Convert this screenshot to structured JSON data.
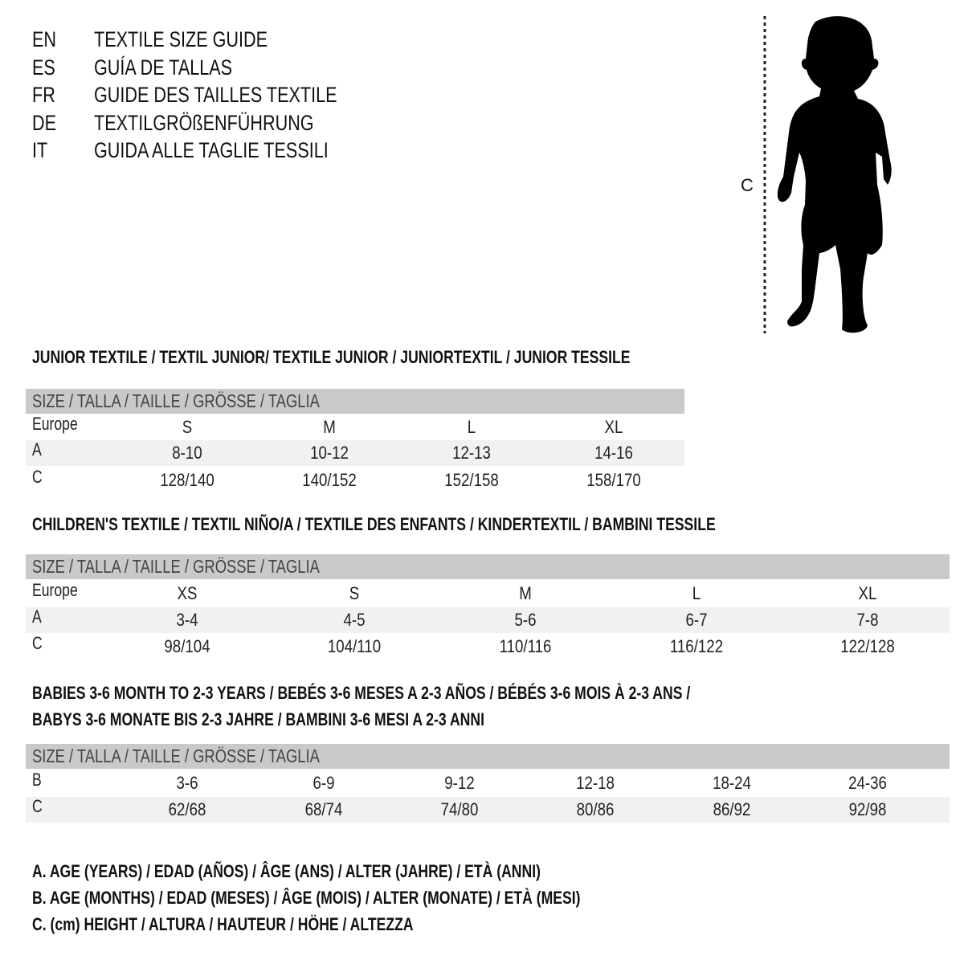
{
  "languages": [
    {
      "code": "EN",
      "title": "TEXTILE SIZE GUIDE"
    },
    {
      "code": "ES",
      "title": "GUÍA DE TALLAS"
    },
    {
      "code": "FR",
      "title": "GUIDE DES TAILLES TEXTILE"
    },
    {
      "code": "DE",
      "title": "TEXTILGRÖßENFÜHRUNG"
    },
    {
      "code": "IT",
      "title": "GUIDA ALLE TAGLIE TESSILI"
    }
  ],
  "figure": {
    "measure_label": "C",
    "icon": "child-silhouette-icon"
  },
  "colors": {
    "header_bg": "#c9c9c9",
    "row_shade": "#f1f1f1"
  },
  "sections": [
    {
      "title_lines": [
        "JUNIOR TEXTILE / TEXTIL JUNIOR/ TEXTILE JUNIOR / JUNIORTEXTIL / JUNIOR TESSILE"
      ],
      "header": "SIZE / TALLA / TAILLE / GRÖSSE / TAGLIA",
      "rows": [
        {
          "label": "Europe",
          "values": [
            "S",
            "M",
            "L",
            "XL"
          ]
        },
        {
          "label": "A",
          "values": [
            "8-10",
            "10-12",
            "12-13",
            "14-16"
          ]
        },
        {
          "label": "C",
          "values": [
            "128/140",
            "140/152",
            "152/158",
            "158/170"
          ]
        }
      ]
    },
    {
      "title_lines": [
        "CHILDREN'S TEXTILE / TEXTIL NIÑO/A / TEXTILE DES ENFANTS / KINDERTEXTIL / BAMBINI TESSILE"
      ],
      "header": "SIZE / TALLA / TAILLE / GRÖSSE / TAGLIA",
      "rows": [
        {
          "label": "Europe",
          "values": [
            "XS",
            "S",
            "M",
            "L",
            "XL"
          ]
        },
        {
          "label": "A",
          "values": [
            "3-4",
            "4-5",
            "5-6",
            "6-7",
            "7-8"
          ]
        },
        {
          "label": "C",
          "values": [
            "98/104",
            "104/110",
            "110/116",
            "116/122",
            "122/128"
          ]
        }
      ]
    },
    {
      "title_lines": [
        "BABIES 3-6 MONTH TO 2-3 YEARS / BEBÉS 3-6 MESES A 2-3 AÑOS / BÉBÉS 3-6 MOIS À 2-3 ANS /",
        "BABYS 3-6 MONATE BIS 2-3 JAHRE / BAMBINI 3-6 MESI A 2-3 ANNI"
      ],
      "header": "SIZE / TALLA / TAILLE / GRÖSSE / TAGLIA",
      "rows": [
        {
          "label": "B",
          "values": [
            "3-6",
            "6-9",
            "9-12",
            "12-18",
            "18-24",
            "24-36"
          ]
        },
        {
          "label": "C",
          "values": [
            "62/68",
            "68/74",
            "74/80",
            "80/86",
            "86/92",
            "92/98"
          ]
        }
      ]
    }
  ],
  "legend": [
    "A. AGE (YEARS) / EDAD (AÑOS) / ÂGE (ANS) / ALTER (JAHRE) / ETÀ (ANNI)",
    "B. AGE (MONTHS) / EDAD (MESES) / ÂGE (MOIS) / ALTER (MONATE) / ETÀ (MESI)",
    "C. (cm) HEIGHT / ALTURA / HAUTEUR / HÖHE / ALTEZZA"
  ]
}
